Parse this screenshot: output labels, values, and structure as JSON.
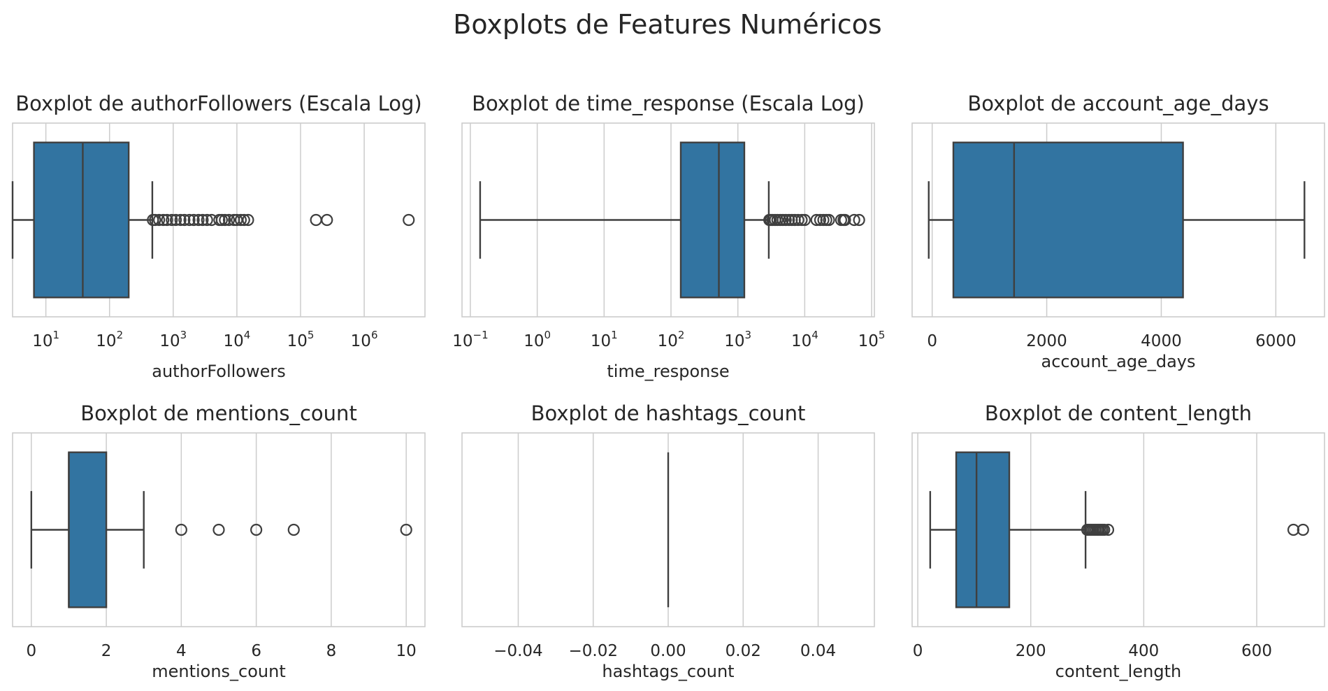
{
  "figure": {
    "title": "Boxplots de Features Numéricos",
    "colors": {
      "box": "#3274a1",
      "line": "#3f3f3f",
      "grid": "#cccccc",
      "text": "#262626"
    }
  },
  "chart_data": [
    {
      "type": "boxplot",
      "title": "Boxplot de authorFollowers (Escala Log)",
      "xlabel": "authorFollowers",
      "ylabel": "",
      "xscale": "log",
      "xlim": [
        3,
        9000000
      ],
      "ticks": [
        10,
        100,
        1000,
        10000,
        100000,
        1000000
      ],
      "tick_labels": [
        [
          "10",
          "1"
        ],
        [
          "10",
          "2"
        ],
        [
          "10",
          "3"
        ],
        [
          "10",
          "4"
        ],
        [
          "10",
          "5"
        ],
        [
          "10",
          "6"
        ]
      ],
      "grid": true,
      "box": {
        "whisker_low": 3,
        "q1": 6.5,
        "median": 38,
        "q3": 200,
        "whisker_high": 470
      },
      "outliers": [
        480,
        520,
        600,
        700,
        800,
        950,
        1100,
        1300,
        1500,
        1800,
        2100,
        2500,
        2900,
        3400,
        4000,
        5300,
        5800,
        6500,
        7500,
        9000,
        10000,
        11500,
        13000,
        15000,
        175000,
        260000,
        5000000
      ]
    },
    {
      "type": "boxplot",
      "title": "Boxplot de time_response (Escala Log)",
      "xlabel": "time_response",
      "ylabel": "",
      "xscale": "log",
      "xlim": [
        0.075,
        110000
      ],
      "ticks": [
        0.1,
        1,
        10,
        100,
        1000,
        10000,
        100000
      ],
      "tick_labels": [
        [
          "10",
          "−1"
        ],
        [
          "10",
          "0"
        ],
        [
          "10",
          "1"
        ],
        [
          "10",
          "2"
        ],
        [
          "10",
          "3"
        ],
        [
          "10",
          "4"
        ],
        [
          "10",
          "5"
        ]
      ],
      "grid": true,
      "box": {
        "whisker_low": 0.14,
        "q1": 140,
        "median": 520,
        "q3": 1250,
        "whisker_high": 2900
      },
      "outliers": [
        2950,
        3100,
        3300,
        3600,
        3900,
        4300,
        4700,
        5200,
        5800,
        6400,
        7100,
        8000,
        9000,
        10000,
        15000,
        17000,
        19000,
        21000,
        23000,
        35000,
        38000,
        40000,
        55000,
        65000
      ]
    },
    {
      "type": "boxplot",
      "title": "Boxplot de account_age_days",
      "xlabel": "account_age_days",
      "ylabel": "",
      "xscale": "linear",
      "xlim": [
        -350,
        6850
      ],
      "ticks": [
        0,
        2000,
        4000,
        6000
      ],
      "tick_labels": [
        "0",
        "2000",
        "4000",
        "6000"
      ],
      "grid": true,
      "box": {
        "whisker_low": -60,
        "q1": 370,
        "median": 1430,
        "q3": 4380,
        "whisker_high": 6500
      },
      "outliers": []
    },
    {
      "type": "boxplot",
      "title": "Boxplot de mentions_count",
      "xlabel": "mentions_count",
      "ylabel": "",
      "xscale": "linear",
      "xlim": [
        -0.5,
        10.5
      ],
      "ticks": [
        0,
        2,
        4,
        6,
        8,
        10
      ],
      "tick_labels": [
        "0",
        "2",
        "4",
        "6",
        "8",
        "10"
      ],
      "grid": true,
      "box": {
        "whisker_low": 0,
        "q1": 1,
        "median": 1,
        "q3": 2,
        "whisker_high": 3
      },
      "outliers": [
        4,
        5,
        6,
        7,
        10
      ]
    },
    {
      "type": "boxplot",
      "title": "Boxplot de hashtags_count",
      "xlabel": "hashtags_count",
      "ylabel": "",
      "xscale": "linear",
      "xlim": [
        -0.055,
        0.055
      ],
      "ticks": [
        -0.04,
        -0.02,
        0,
        0.02,
        0.04
      ],
      "tick_labels": [
        "−0.04",
        "−0.02",
        "0.00",
        "0.02",
        "0.04"
      ],
      "grid": true,
      "box": {
        "whisker_low": 0,
        "q1": 0,
        "median": 0,
        "q3": 0,
        "whisker_high": 0
      },
      "outliers": []
    },
    {
      "type": "boxplot",
      "title": "Boxplot de content_length",
      "xlabel": "content_length",
      "ylabel": "",
      "xscale": "linear",
      "xlim": [
        -10,
        720
      ],
      "ticks": [
        0,
        200,
        400,
        600
      ],
      "tick_labels": [
        "0",
        "200",
        "400",
        "600"
      ],
      "grid": true,
      "box": {
        "whisker_low": 22,
        "q1": 68,
        "median": 104,
        "q3": 162,
        "whisker_high": 297
      },
      "outliers": [
        300,
        303,
        306,
        309,
        312,
        315,
        318,
        321,
        324,
        327,
        330,
        337,
        665,
        682
      ]
    }
  ]
}
